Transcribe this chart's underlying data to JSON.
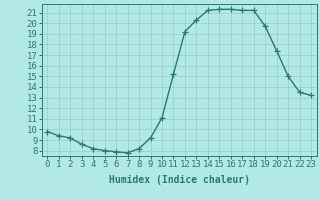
{
  "x": [
    0,
    1,
    2,
    3,
    4,
    5,
    6,
    7,
    8,
    9,
    10,
    11,
    12,
    13,
    14,
    15,
    16,
    17,
    18,
    19,
    20,
    21,
    22,
    23
  ],
  "y": [
    9.8,
    9.4,
    9.2,
    8.6,
    8.2,
    8.0,
    7.9,
    7.8,
    8.2,
    9.2,
    11.1,
    15.2,
    19.2,
    20.3,
    21.2,
    21.3,
    21.3,
    21.2,
    21.2,
    19.7,
    17.4,
    15.0,
    13.5,
    13.2
  ],
  "line_color": "#2a7a6f",
  "marker": "+",
  "marker_size": 4,
  "linewidth": 1.0,
  "markeredgewidth": 0.9,
  "xlabel": "Humidex (Indice chaleur)",
  "ylabel_ticks": [
    8,
    9,
    10,
    11,
    12,
    13,
    14,
    15,
    16,
    17,
    18,
    19,
    20,
    21
  ],
  "ylim": [
    7.5,
    21.8
  ],
  "xlim": [
    -0.5,
    23.5
  ],
  "bg_color": "#b3e8e8",
  "grid_color": "#99cccc",
  "xlabel_fontsize": 7,
  "tick_fontsize": 6.5
}
